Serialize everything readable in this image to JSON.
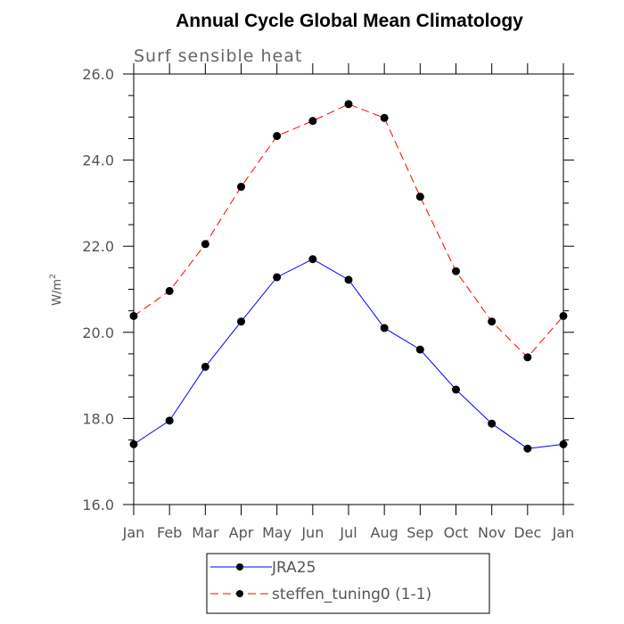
{
  "chart_data": {
    "type": "line",
    "title": "Annual Cycle Global Mean Climatology",
    "subtitle": "Surf sensible heat",
    "ylabel": "W/m",
    "ylabel_superscript": "2",
    "categories": [
      "Jan",
      "Feb",
      "Mar",
      "Apr",
      "May",
      "Jun",
      "Jul",
      "Aug",
      "Sep",
      "Oct",
      "Nov",
      "Dec",
      "Jan"
    ],
    "ylim": [
      16.0,
      26.0
    ],
    "yticks": [
      "16.0",
      "18.0",
      "20.0",
      "22.0",
      "24.0",
      "26.0"
    ],
    "ytick_values": [
      16,
      18,
      20,
      22,
      24,
      26
    ],
    "grid": false,
    "legend_position": "bottom",
    "series": [
      {
        "name": "JRA25",
        "color": "#0000ff",
        "dash": "solid",
        "values": [
          17.4,
          17.95,
          19.2,
          20.25,
          21.28,
          21.7,
          21.22,
          20.1,
          19.6,
          18.67,
          17.88,
          17.3,
          17.4
        ]
      },
      {
        "name": "steffen_tuning0 (1-1)",
        "color": "#ff0000",
        "dash": "dashed",
        "values": [
          20.38,
          20.96,
          22.05,
          23.38,
          24.56,
          24.91,
          25.3,
          24.98,
          23.15,
          21.42,
          20.25,
          19.42,
          20.38
        ]
      }
    ]
  }
}
